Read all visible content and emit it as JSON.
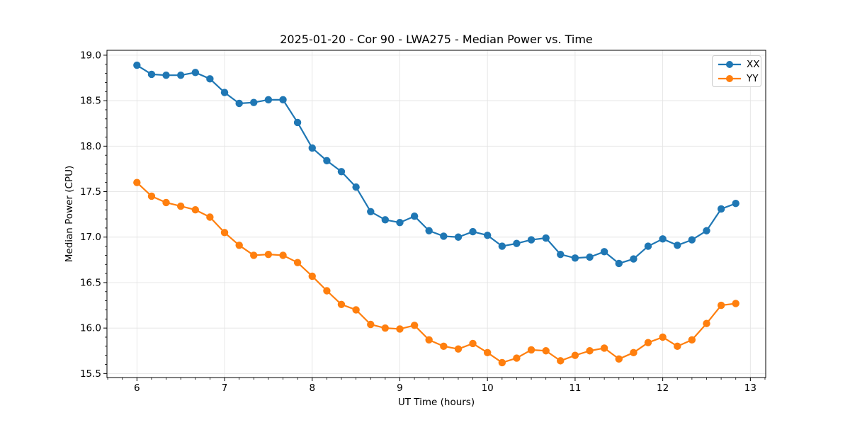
{
  "figure": {
    "background": "#ffffff"
  },
  "chart_data": {
    "type": "line",
    "title": "2025-01-20 - Cor 90 - LWA275 - Median Power vs. Time",
    "xlabel": "UT Time (hours)",
    "ylabel": "Median Power (CPU)",
    "x": [
      6.0,
      6.167,
      6.333,
      6.5,
      6.667,
      6.833,
      7.0,
      7.167,
      7.333,
      7.5,
      7.667,
      7.833,
      8.0,
      8.167,
      8.333,
      8.5,
      8.667,
      8.833,
      9.0,
      9.167,
      9.333,
      9.5,
      9.667,
      9.833,
      10.0,
      10.167,
      10.333,
      10.5,
      10.667,
      10.833,
      11.0,
      11.167,
      11.333,
      11.5,
      11.667,
      11.833,
      12.0,
      12.167,
      12.333,
      12.5,
      12.667,
      12.833
    ],
    "series": [
      {
        "name": "XX",
        "color": "#1f77b4",
        "values": [
          18.89,
          18.79,
          18.78,
          18.78,
          18.81,
          18.74,
          18.59,
          18.47,
          18.48,
          18.51,
          18.51,
          18.26,
          17.98,
          17.84,
          17.72,
          17.55,
          17.28,
          17.19,
          17.16,
          17.23,
          17.07,
          17.01,
          17.0,
          17.06,
          17.02,
          16.9,
          16.93,
          16.97,
          16.99,
          16.81,
          16.77,
          16.78,
          16.84,
          16.71,
          16.76,
          16.9,
          16.98,
          16.91,
          16.97,
          17.07,
          17.31,
          17.37
        ]
      },
      {
        "name": "YY",
        "color": "#ff7f0e",
        "values": [
          17.6,
          17.45,
          17.38,
          17.34,
          17.3,
          17.22,
          17.05,
          16.91,
          16.8,
          16.81,
          16.8,
          16.72,
          16.57,
          16.41,
          16.26,
          16.2,
          16.04,
          16.0,
          15.99,
          16.03,
          15.87,
          15.8,
          15.77,
          15.83,
          15.73,
          15.62,
          15.67,
          15.76,
          15.75,
          15.64,
          15.7,
          15.75,
          15.78,
          15.66,
          15.73,
          15.84,
          15.9,
          15.8,
          15.87,
          16.05,
          16.25,
          16.27
        ]
      }
    ],
    "xlim": [
      5.658,
      13.175
    ],
    "ylim": [
      15.456,
      19.054
    ],
    "xticks": [
      6,
      7,
      8,
      9,
      10,
      11,
      12,
      13
    ],
    "xtick_labels": [
      "6",
      "7",
      "8",
      "9",
      "10",
      "11",
      "12",
      "13"
    ],
    "yticks": [
      15.5,
      16.0,
      16.5,
      17.0,
      17.5,
      18.0,
      18.5,
      19.0
    ],
    "ytick_labels": [
      "15.5",
      "16.0",
      "16.5",
      "17.0",
      "17.5",
      "18.0",
      "18.5",
      "19.0"
    ],
    "grid": true,
    "legend_position": "upper right"
  }
}
